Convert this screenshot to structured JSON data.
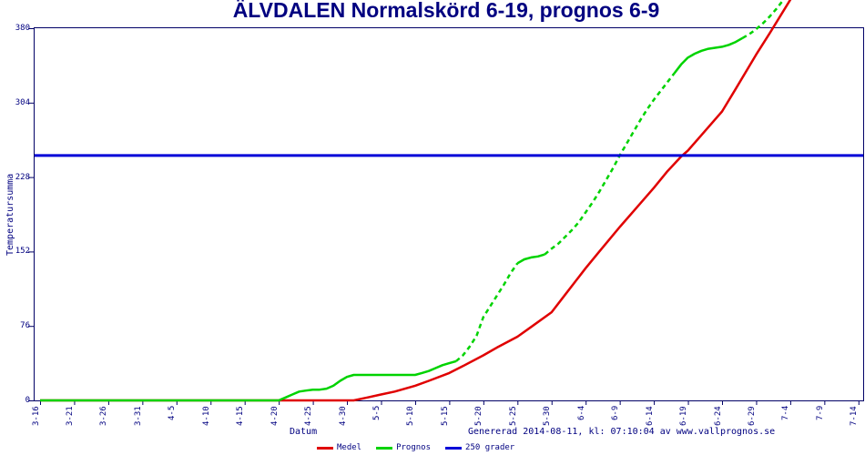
{
  "title": "ÄLVDALEN Normalskörd 6-19, prognos 6-9",
  "footer": {
    "generated_text": "Genererad 2014-08-11, kl: 07:10:04 av www.vallprognos.se"
  },
  "chart_data": {
    "type": "line",
    "title": "ÄLVDALEN Normalskörd 6-19, prognos 6-9",
    "xlabel": "Datum",
    "ylabel": "Temperatursumma",
    "ylim": [
      0,
      380
    ],
    "yticks": [
      0,
      76,
      152,
      228,
      304,
      380
    ],
    "xtick_labels": [
      "3-16",
      "3-21",
      "3-26",
      "3-31",
      "4-5",
      "4-10",
      "4-15",
      "4-20",
      "4-25",
      "4-30",
      "5-5",
      "5-10",
      "5-15",
      "5-20",
      "5-25",
      "5-30",
      "6-4",
      "6-9",
      "6-14",
      "6-19",
      "6-24",
      "6-29",
      "7-4",
      "7-9",
      "7-14"
    ],
    "xtick_day_interval": 5,
    "grid": "off",
    "legend_position": "bottom",
    "legend": [
      "Medel",
      "Prognos",
      "250 grader"
    ],
    "axis_color": "#000066",
    "text_color": "#000080",
    "series": [
      {
        "name": "Medel",
        "color": "#e00000",
        "style": "solid",
        "points": [
          [
            0,
            0
          ],
          [
            20,
            0
          ],
          [
            35,
            0
          ],
          [
            40,
            0
          ],
          [
            46,
            0
          ],
          [
            48,
            3
          ],
          [
            50,
            6
          ],
          [
            52,
            9
          ],
          [
            55,
            15
          ],
          [
            57,
            20
          ],
          [
            60,
            28
          ],
          [
            62,
            35
          ],
          [
            65,
            46
          ],
          [
            67,
            54
          ],
          [
            70,
            65
          ],
          [
            72,
            75
          ],
          [
            75,
            90
          ],
          [
            77,
            108
          ],
          [
            80,
            135
          ],
          [
            82,
            152
          ],
          [
            85,
            177
          ],
          [
            87,
            193
          ],
          [
            90,
            217
          ],
          [
            92,
            234
          ],
          [
            94,
            249
          ],
          [
            95,
            255
          ],
          [
            97,
            271
          ],
          [
            100,
            295
          ],
          [
            102,
            318
          ],
          [
            105,
            353
          ],
          [
            107,
            375
          ],
          [
            110,
            409
          ],
          [
            111,
            420
          ]
        ]
      },
      {
        "name": "Prognos",
        "color": "#00d300",
        "style": "mixed",
        "dashed_day_ranges": [
          [
            61,
            70
          ],
          [
            74,
            93.5
          ],
          [
            103,
            111
          ]
        ],
        "points": [
          [
            0,
            0
          ],
          [
            20,
            0
          ],
          [
            35,
            0
          ],
          [
            36,
            3
          ],
          [
            37,
            6
          ],
          [
            38,
            9
          ],
          [
            39,
            10
          ],
          [
            40,
            11
          ],
          [
            41,
            11
          ],
          [
            42,
            12
          ],
          [
            43,
            15
          ],
          [
            44,
            20
          ],
          [
            45,
            24
          ],
          [
            46,
            26
          ],
          [
            50,
            26
          ],
          [
            55,
            26
          ],
          [
            56,
            28
          ],
          [
            57,
            30
          ],
          [
            58,
            33
          ],
          [
            59,
            36
          ],
          [
            60,
            38
          ],
          [
            61,
            40
          ],
          [
            62,
            46
          ],
          [
            63,
            55
          ],
          [
            64,
            66
          ],
          [
            65,
            85
          ],
          [
            66,
            96
          ],
          [
            67,
            107
          ],
          [
            68,
            118
          ],
          [
            69,
            130
          ],
          [
            70,
            140
          ],
          [
            71,
            144
          ],
          [
            72,
            146
          ],
          [
            73,
            147
          ],
          [
            74,
            149
          ],
          [
            75,
            155
          ],
          [
            76,
            160
          ],
          [
            77,
            167
          ],
          [
            78,
            174
          ],
          [
            79,
            182
          ],
          [
            80,
            192
          ],
          [
            81,
            202
          ],
          [
            82,
            213
          ],
          [
            83,
            225
          ],
          [
            84,
            237
          ],
          [
            85,
            250
          ],
          [
            86,
            262
          ],
          [
            87,
            274
          ],
          [
            88,
            286
          ],
          [
            89,
            297
          ],
          [
            90,
            307
          ],
          [
            91,
            316
          ],
          [
            92,
            325
          ],
          [
            93,
            334
          ],
          [
            94,
            343
          ],
          [
            95,
            350
          ],
          [
            96,
            354
          ],
          [
            97,
            357
          ],
          [
            98,
            359
          ],
          [
            99,
            360
          ],
          [
            100,
            361
          ],
          [
            101,
            363
          ],
          [
            102,
            366
          ],
          [
            103,
            370
          ],
          [
            104,
            374
          ],
          [
            105,
            379
          ],
          [
            106,
            385
          ],
          [
            107,
            392
          ],
          [
            108,
            400
          ],
          [
            109,
            409
          ],
          [
            110,
            418
          ]
        ]
      }
    ],
    "reference_line": {
      "name": "250 grader",
      "value": 250,
      "color": "#0000d8"
    }
  }
}
